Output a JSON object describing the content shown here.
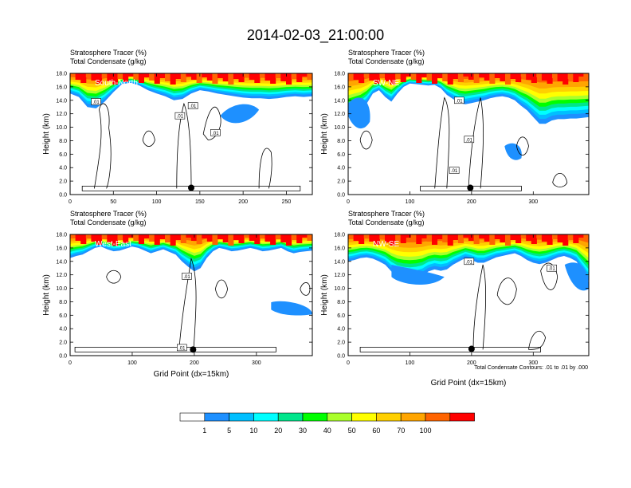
{
  "figure_title": "2014-02-03_21:00:00",
  "colors": {
    "levels": [
      "#ffffff",
      "#1e90ff",
      "#00bfff",
      "#00ffff",
      "#00e68c",
      "#00ff00",
      "#aaff2b",
      "#ffff00",
      "#ffd000",
      "#ffa500",
      "#ff6400",
      "#ff0000"
    ]
  },
  "colorbar": {
    "labels": [
      "1",
      "5",
      "10",
      "20",
      "30",
      "40",
      "50",
      "60",
      "70",
      "100"
    ]
  },
  "footnote": "Total Condensate Contours: .01 to .01 by .000",
  "chart_data": [
    {
      "type": "heatmap",
      "title": "Stratosphere Tracer   (%)",
      "subtitle": "Total Condensate   (g/kg)",
      "panel_label": "South-North",
      "ylabel": "Height (km)",
      "xlabel": "",
      "xlim": [
        0,
        280
      ],
      "ylim": [
        0,
        18
      ],
      "xticks": [
        "0",
        "50",
        "100",
        "150",
        "200",
        "250"
      ],
      "xtick_values": [
        0,
        50,
        100,
        150,
        200,
        250
      ],
      "yticks": [
        "0.0",
        "2.0",
        "4.0",
        "6.0",
        "8.0",
        "10.0",
        "12.0",
        "14.0",
        "16.0",
        "18.0"
      ],
      "contour_labels": [
        ".01",
        ".01",
        ".01",
        ".01"
      ],
      "contour_label_pos": [
        [
          30,
          13.8
        ],
        [
          142,
          13.2
        ],
        [
          127,
          11.7
        ],
        [
          168,
          9.2
        ]
      ],
      "marker": [
        140,
        1.0
      ],
      "tracer_base_km": [
        15.0,
        14.5,
        13.0,
        12.8,
        13.8,
        15.2,
        16.4,
        16.6,
        16.2,
        15.5,
        15.0,
        14.6,
        14.0,
        14.2,
        15.0,
        15.5,
        15.3,
        15.0,
        14.8,
        14.6,
        14.4,
        14.3,
        14.3,
        14.2,
        14.3,
        14.5,
        14.6,
        14.5,
        14.6
      ]
    },
    {
      "type": "heatmap",
      "title": "Stratosphere Tracer   (%)",
      "subtitle": "Total Condensate   (g/kg)",
      "panel_label": "SW-NE",
      "ylabel": "Height (km)",
      "xlabel": "",
      "xlim": [
        0,
        390
      ],
      "ylim": [
        0,
        18
      ],
      "xticks": [
        "0",
        "100",
        "200",
        "300"
      ],
      "xtick_values": [
        0,
        100,
        200,
        300
      ],
      "yticks": [
        "0.0",
        "2.0",
        "4.0",
        "6.0",
        "8.0",
        "10.0",
        "12.0",
        "14.0",
        "16.0",
        "18.0"
      ],
      "contour_labels": [
        ".01",
        ".01",
        ".01"
      ],
      "contour_label_pos": [
        [
          180,
          14.0
        ],
        [
          196,
          8.2
        ],
        [
          172,
          3.6
        ]
      ],
      "marker": [
        198,
        1.0
      ],
      "tracer_base_km": [
        11.5,
        12.0,
        12.5,
        13.5,
        15.0,
        15.5,
        14.5,
        13.8,
        15.0,
        16.0,
        16.5,
        16.4,
        16.3,
        16.2,
        16.3,
        15.8,
        14.8,
        14.2,
        13.6,
        13.4,
        13.6,
        13.8,
        14.0,
        14.3,
        14.5,
        14.6,
        14.4,
        14.0,
        13.2,
        12.5,
        11.5,
        10.5,
        10.5,
        11.0,
        11.2,
        11.2,
        11.3,
        11.3,
        11.4,
        11.5
      ]
    },
    {
      "type": "heatmap",
      "title": "Stratosphere Tracer   (%)",
      "subtitle": "Total Condensate   (g/kg)",
      "panel_label": "West-East",
      "ylabel": "Height (km)",
      "xlabel": "Grid Point (dx=15km)",
      "xlim": [
        0,
        390
      ],
      "ylim": [
        0,
        18
      ],
      "xticks": [
        "0",
        "100",
        "200",
        "300"
      ],
      "xtick_values": [
        0,
        100,
        200,
        300
      ],
      "yticks": [
        "0.0",
        "2.0",
        "4.0",
        "6.0",
        "8.0",
        "10.0",
        "12.0",
        "14.0",
        "16.0",
        "18.0"
      ],
      "contour_labels": [
        ".01",
        ".01"
      ],
      "contour_label_pos": [
        [
          188,
          11.8
        ],
        [
          180,
          1.2
        ]
      ],
      "marker": [
        198,
        0.9
      ],
      "tracer_base_km": [
        14.5,
        14.8,
        15.0,
        15.5,
        16.0,
        16.2,
        15.8,
        15.5,
        15.6,
        15.9,
        16.2,
        16.0,
        15.6,
        15.2,
        15.5,
        15.8,
        15.4,
        15.0,
        14.0,
        13.2,
        12.5,
        13.0,
        14.5,
        15.5,
        16.0,
        15.8,
        15.5,
        15.6,
        15.8,
        16.0,
        15.8,
        15.5,
        15.6,
        15.8,
        16.0,
        15.5,
        15.2,
        15.4,
        15.5,
        15.6
      ]
    },
    {
      "type": "heatmap",
      "title": "Stratosphere Tracer   (%)",
      "subtitle": "Total Condensate   (g/kg)",
      "panel_label": "NW-SE",
      "ylabel": "Height (km)",
      "xlabel": "Grid Point (dx=15km)",
      "xlim": [
        0,
        390
      ],
      "ylim": [
        0,
        18
      ],
      "xticks": [
        "0",
        "100",
        "200",
        "300"
      ],
      "xtick_values": [
        0,
        100,
        200,
        300
      ],
      "yticks": [
        "0.0",
        "2.0",
        "4.0",
        "6.0",
        "8.0",
        "10.0",
        "12.0",
        "14.0",
        "16.0",
        "18.0"
      ],
      "contour_labels": [
        ".01",
        ".01"
      ],
      "contour_label_pos": [
        [
          196,
          14.0
        ],
        [
          330,
          13.0
        ]
      ],
      "marker": [
        200,
        1.0
      ],
      "tracer_base_km": [
        14.0,
        14.2,
        14.5,
        14.6,
        14.4,
        14.0,
        13.5,
        12.5,
        11.8,
        11.5,
        11.4,
        11.5,
        11.8,
        12.5,
        12.8,
        12.6,
        12.8,
        13.5,
        14.0,
        14.5,
        14.2,
        13.8,
        13.8,
        14.2,
        14.6,
        14.8,
        15.0,
        15.2,
        14.8,
        14.2,
        13.8,
        13.6,
        13.8,
        14.2,
        14.6,
        14.8,
        14.5,
        14.0,
        12.5,
        11.0
      ]
    }
  ]
}
